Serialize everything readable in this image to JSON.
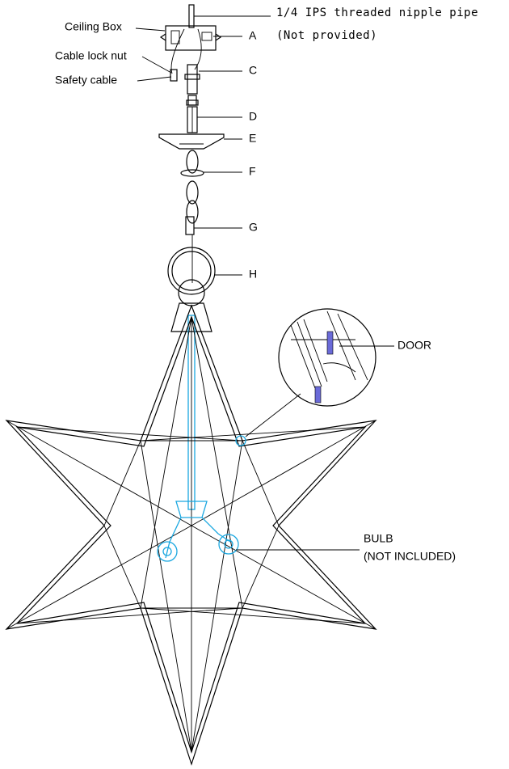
{
  "left_labels": [
    "Ceiling Box",
    "Cable lock nut",
    "Safety cable"
  ],
  "pipe_note": [
    "1/4 IPS threaded nipple pipe",
    "(Not provided)"
  ],
  "parts": [
    "A",
    "C",
    "D",
    "E",
    "F",
    "G",
    "H"
  ],
  "door": "DOOR",
  "bulb": [
    "BULB",
    "(NOT INCLUDED)"
  ]
}
